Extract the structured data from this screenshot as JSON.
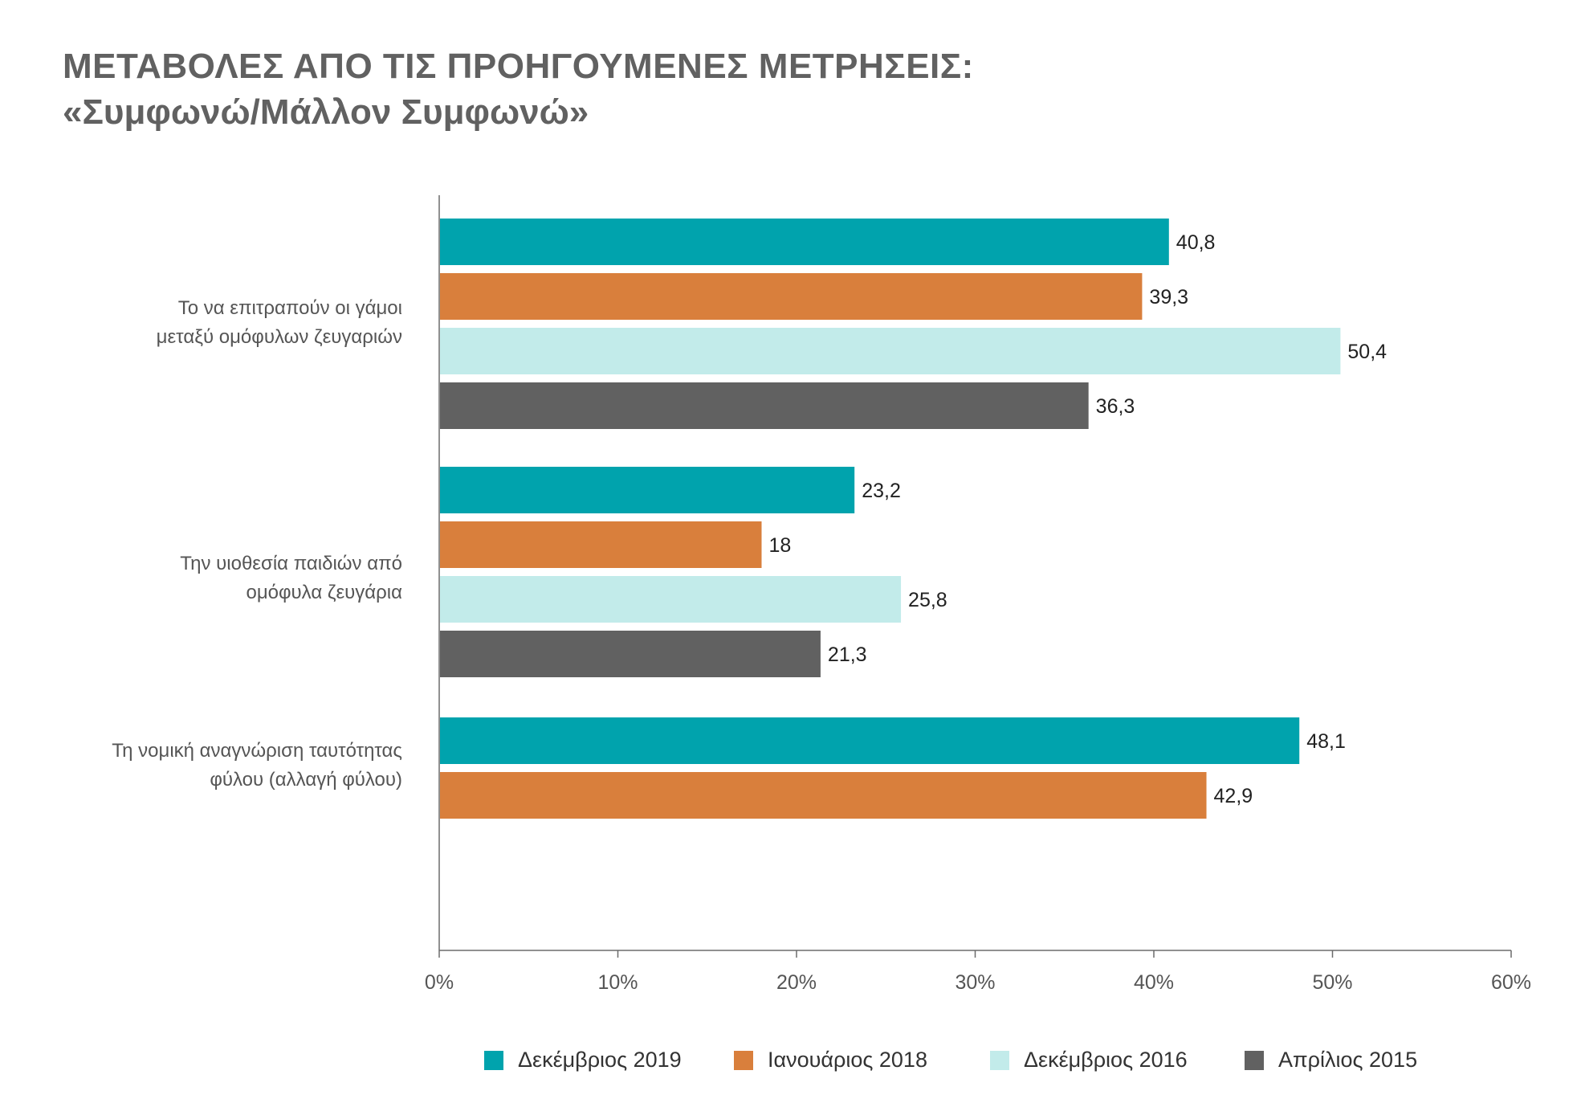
{
  "title": {
    "line1": "ΜΕΤΑΒΟΛΕΣ ΑΠΟ ΤΙΣ ΠΡΟΗΓΟΥΜΕΝΕΣ ΜΕΤΡΗΣΕΙΣ:",
    "line2": "«Συμφωνώ/Μάλλον Συμφωνώ»"
  },
  "categories": [
    {
      "line1": "Το να επιτραπούν οι γάμοι",
      "line2": "μεταξύ ομόφυλων ζευγαριών"
    },
    {
      "line1": "Την υιοθεσία παιδιών από",
      "line2": "ομόφυλα ζευγάρια"
    },
    {
      "line1": "Τη νομική αναγνώριση ταυτότητας",
      "line2": "φύλου (αλλαγή φύλου)"
    }
  ],
  "legend": [
    {
      "label": "Δεκέμβριος 2019",
      "color": "#00a3ad"
    },
    {
      "label": "Ιανουάριος 2018",
      "color": "#d97f3c"
    },
    {
      "label": "Δεκέμβριος 2016",
      "color": "#c2ebea"
    },
    {
      "label": "Απρίλιος 2015",
      "color": "#616161"
    }
  ],
  "chart_data": {
    "type": "bar",
    "orientation": "horizontal",
    "title": "ΜΕΤΑΒΟΛΕΣ ΑΠΟ ΤΙΣ ΠΡΟΗΓΟΥΜΕΝΕΣ ΜΕΤΡΗΣΕΙΣ: «Συμφωνώ/Μάλλον Συμφωνώ»",
    "categories": [
      "Το να επιτραπούν οι γάμοι μεταξύ ομόφυλων ζευγαριών",
      "Την υιοθεσία παιδιών από ομόφυλα ζευγάρια",
      "Τη νομική αναγνώριση ταυτότητας φύλου (αλλαγή φύλου)"
    ],
    "series": [
      {
        "name": "Δεκέμβριος 2019",
        "color": "#00a3ad",
        "values": [
          40.8,
          23.2,
          48.1
        ],
        "labels": [
          "40,8",
          "23,2",
          "48,1"
        ]
      },
      {
        "name": "Ιανουάριος 2018",
        "color": "#d97f3c",
        "values": [
          39.3,
          18,
          42.9
        ],
        "labels": [
          "39,3",
          "18",
          "42,9"
        ]
      },
      {
        "name": "Δεκέμβριος 2016",
        "color": "#c2ebea",
        "values": [
          50.4,
          25.8,
          null
        ],
        "labels": [
          "50,4",
          "25,8",
          null
        ]
      },
      {
        "name": "Απρίλιος 2015",
        "color": "#616161",
        "values": [
          36.3,
          21.3,
          null
        ],
        "labels": [
          "36,3",
          "21,3",
          null
        ]
      }
    ],
    "xlim": [
      0,
      60
    ],
    "xticks": [
      0,
      10,
      20,
      30,
      40,
      50,
      60
    ],
    "xtick_labels": [
      "0%",
      "10%",
      "20%",
      "30%",
      "40%",
      "50%",
      "60%"
    ],
    "xlabel": "",
    "ylabel": "",
    "grid": false,
    "legend_position": "bottom"
  }
}
